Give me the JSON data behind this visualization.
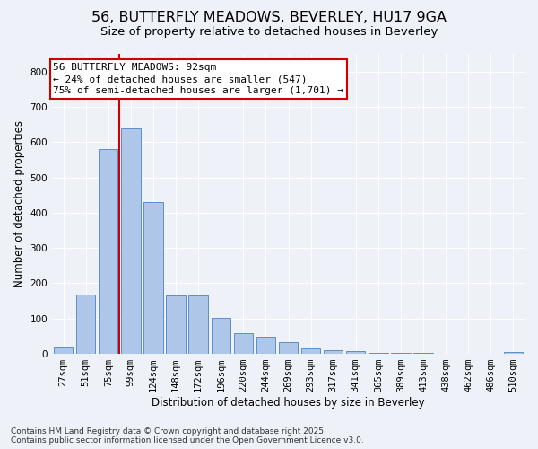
{
  "title_line1": "56, BUTTERFLY MEADOWS, BEVERLEY, HU17 9GA",
  "title_line2": "Size of property relative to detached houses in Beverley",
  "xlabel": "Distribution of detached houses by size in Beverley",
  "ylabel": "Number of detached properties",
  "categories": [
    "27sqm",
    "51sqm",
    "75sqm",
    "99sqm",
    "124sqm",
    "148sqm",
    "172sqm",
    "196sqm",
    "220sqm",
    "244sqm",
    "269sqm",
    "293sqm",
    "317sqm",
    "341sqm",
    "365sqm",
    "389sqm",
    "413sqm",
    "438sqm",
    "462sqm",
    "486sqm",
    "510sqm"
  ],
  "values": [
    20,
    168,
    580,
    640,
    430,
    165,
    165,
    102,
    58,
    48,
    33,
    15,
    10,
    8,
    4,
    4,
    2,
    1,
    0,
    0,
    5
  ],
  "bar_color": "#aec6e8",
  "bar_edge_color": "#5b8fc9",
  "vline_color": "#cc0000",
  "annotation_text_line1": "56 BUTTERFLY MEADOWS: 92sqm",
  "annotation_text_line2": "← 24% of detached houses are smaller (547)",
  "annotation_text_line3": "75% of semi-detached houses are larger (1,701) →",
  "annotation_box_color": "#ffffff",
  "annotation_box_edge_color": "#cc0000",
  "ylim": [
    0,
    850
  ],
  "yticks": [
    0,
    100,
    200,
    300,
    400,
    500,
    600,
    700,
    800
  ],
  "background_color": "#eef2f8",
  "plot_background": "#eef2f8",
  "grid_color": "#ffffff",
  "footer_line1": "Contains HM Land Registry data © Crown copyright and database right 2025.",
  "footer_line2": "Contains public sector information licensed under the Open Government Licence v3.0.",
  "title_fontsize": 11.5,
  "subtitle_fontsize": 9.5,
  "axis_label_fontsize": 8.5,
  "tick_fontsize": 7.5,
  "annotation_fontsize": 8,
  "footer_fontsize": 6.5
}
